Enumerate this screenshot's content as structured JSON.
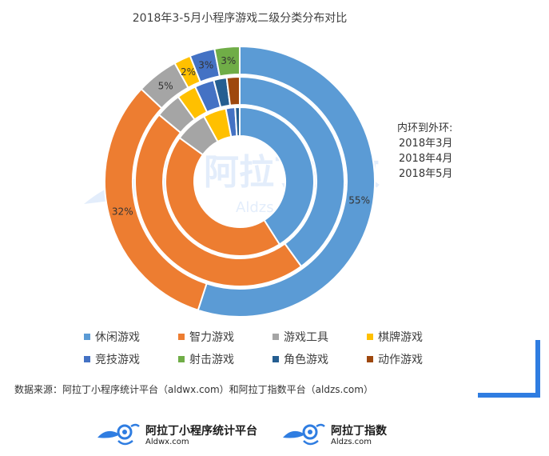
{
  "title": "2018年3-5月小程序游戏二级分类分布对比",
  "ring_note": {
    "heading": "内环到外环:",
    "rings": [
      "2018年3月",
      "2018年4月",
      "2018年5月"
    ]
  },
  "source_text": "数据来源：阿拉丁小程序统计平台（aldwx.com）和阿拉丁指数平台（aldzs.com）",
  "logos": {
    "left": {
      "name": "阿拉丁小程序统计平台",
      "sub": "Aldwx.com"
    },
    "right": {
      "name": "阿拉丁指数",
      "sub": "Aldzs.com"
    }
  },
  "watermark": {
    "text": "阿拉丁指数",
    "sub": "Aldzs.com"
  },
  "colors": {
    "休闲游戏": "#5b9bd5",
    "智力游戏": "#ed7d31",
    "游戏工具": "#a5a5a5",
    "棋牌游戏": "#ffc000",
    "竞技游戏": "#4472c4",
    "射击游戏": "#70ad47",
    "角色游戏": "#255e91",
    "动作游戏": "#9e480e",
    "accent_corner": "#2f7de1"
  },
  "chart_data": {
    "type": "pie",
    "subtype": "multi-ring-donut",
    "title": "2018年3-5月小程序游戏二级分类分布对比",
    "categories": [
      "休闲游戏",
      "智力游戏",
      "游戏工具",
      "棋牌游戏",
      "竞技游戏",
      "射击游戏",
      "角色游戏",
      "动作游戏"
    ],
    "series": [
      {
        "name": "2018年3月",
        "ring": "inner",
        "values": [
          41,
          44,
          7,
          5,
          2,
          0,
          1,
          0
        ]
      },
      {
        "name": "2018年4月",
        "ring": "middle",
        "values": [
          40,
          46,
          4,
          3,
          3,
          0,
          2,
          2
        ]
      },
      {
        "name": "2018年5月",
        "ring": "outer",
        "values": [
          55,
          32,
          5,
          2,
          3,
          3,
          0,
          0
        ]
      }
    ],
    "data_labels": [
      {
        "series": "2018年5月",
        "category": "休闲游戏",
        "text": "55%"
      },
      {
        "series": "2018年5月",
        "category": "智力游戏",
        "text": "32%"
      },
      {
        "series": "2018年5月",
        "category": "游戏工具",
        "text": "5%"
      },
      {
        "series": "2018年5月",
        "category": "棋牌游戏",
        "text": "2%"
      },
      {
        "series": "2018年5月",
        "category": "竞技游戏",
        "text": "3%"
      },
      {
        "series": "2018年5月",
        "category": "射击游戏",
        "text": "3%"
      }
    ],
    "legend": {
      "position": "bottom",
      "items": [
        "休闲游戏",
        "智力游戏",
        "游戏工具",
        "棋牌游戏",
        "竞技游戏",
        "射击游戏",
        "角色游戏",
        "动作游戏"
      ]
    },
    "start_angle_deg": 0,
    "direction": "clockwise"
  }
}
